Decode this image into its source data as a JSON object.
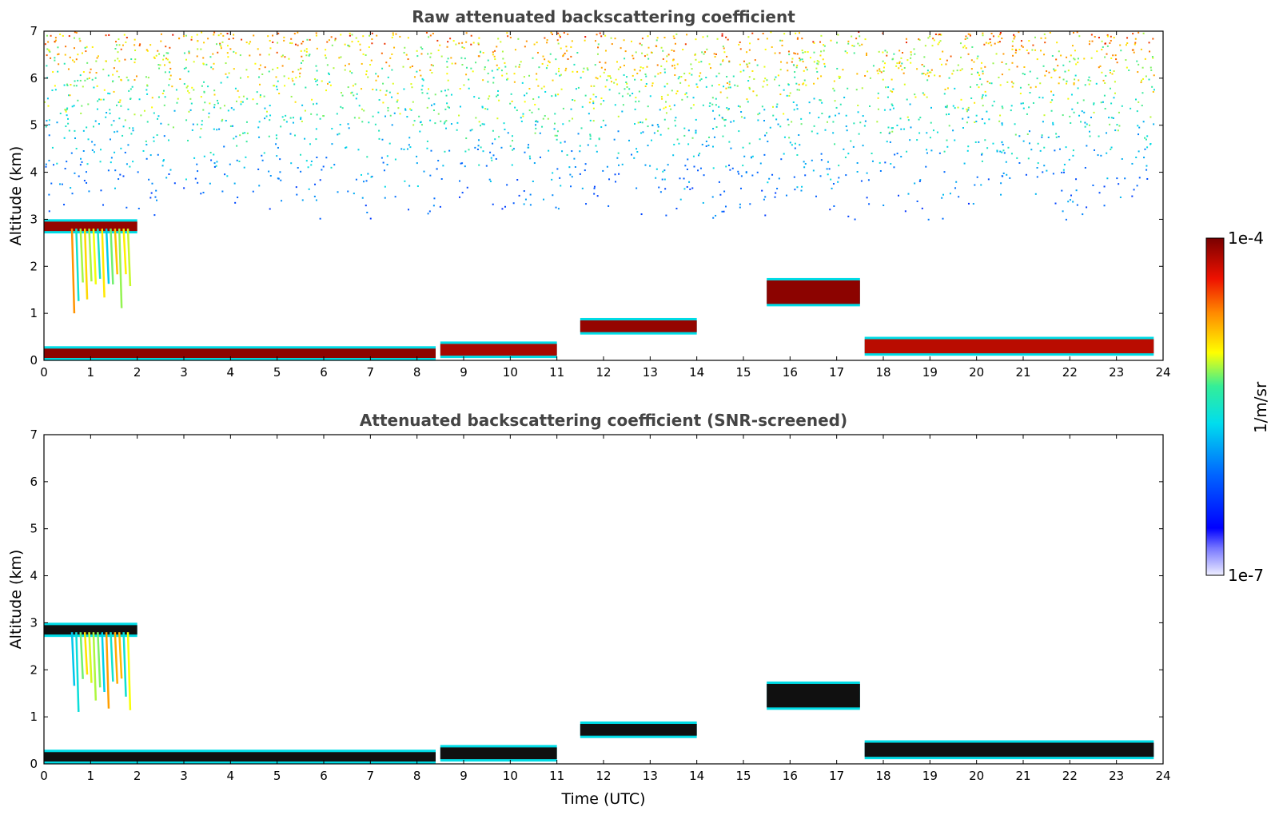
{
  "chart_data": [
    {
      "type": "heatmap",
      "title": "Raw attenuated backscattering coefficient",
      "xlabel": "",
      "ylabel": "Altitude (km)",
      "xlim": [
        0,
        24
      ],
      "ylim": [
        0,
        7
      ],
      "xticks": [
        "0",
        "1",
        "2",
        "3",
        "4",
        "5",
        "6",
        "7",
        "8",
        "9",
        "10",
        "11",
        "12",
        "13",
        "14",
        "15",
        "16",
        "17",
        "18",
        "19",
        "20",
        "21",
        "22",
        "23",
        "24"
      ],
      "yticks": [
        "0",
        "1",
        "2",
        "3",
        "4",
        "5",
        "6",
        "7"
      ],
      "grid": false,
      "layers": [
        {
          "name": "boundary-layer-aerosol",
          "t": [
            0,
            8.4
          ],
          "z": [
            0.05,
            0.25
          ],
          "level": 0.98
        },
        {
          "name": "boundary-layer-aerosol",
          "t": [
            8.5,
            11.0
          ],
          "z": [
            0.1,
            0.35
          ],
          "level": 0.95
        },
        {
          "name": "low-cloud",
          "t": [
            11.5,
            14.0
          ],
          "z": [
            0.6,
            0.85
          ],
          "level": 0.97
        },
        {
          "name": "cloud-base-convective",
          "t": [
            15.5,
            17.5
          ],
          "z": [
            1.2,
            1.7
          ],
          "level": 0.98
        },
        {
          "name": "boundary-layer-aerosol",
          "t": [
            17.6,
            23.8
          ],
          "z": [
            0.15,
            0.45
          ],
          "level": 0.93
        },
        {
          "name": "mid-level-cloud",
          "t": [
            0,
            2.0
          ],
          "z": [
            2.75,
            2.95
          ],
          "level": 0.97
        },
        {
          "name": "virga",
          "t": [
            0.6,
            1.8
          ],
          "z": [
            1.0,
            2.8
          ],
          "level": 0.6
        },
        {
          "name": "upper-noise",
          "t": [
            0,
            23.8
          ],
          "z": [
            3.0,
            7.0
          ],
          "level": 0.55
        }
      ]
    },
    {
      "type": "heatmap",
      "title": "Attenuated backscattering coefficient (SNR-screened)",
      "xlabel": "Time (UTC)",
      "ylabel": "Altitude (km)",
      "xlim": [
        0,
        24
      ],
      "ylim": [
        0,
        7
      ],
      "xticks": [
        "0",
        "1",
        "2",
        "3",
        "4",
        "5",
        "6",
        "7",
        "8",
        "9",
        "10",
        "11",
        "12",
        "13",
        "14",
        "15",
        "16",
        "17",
        "18",
        "19",
        "20",
        "21",
        "22",
        "23",
        "24"
      ],
      "yticks": [
        "0",
        "1",
        "2",
        "3",
        "4",
        "5",
        "6",
        "7"
      ],
      "grid": false,
      "layers": [
        {
          "name": "boundary-layer-aerosol",
          "t": [
            0,
            8.4
          ],
          "z": [
            0.05,
            0.25
          ],
          "level": 1.0
        },
        {
          "name": "boundary-layer-aerosol",
          "t": [
            8.5,
            11.0
          ],
          "z": [
            0.1,
            0.35
          ],
          "level": 1.0
        },
        {
          "name": "low-cloud",
          "t": [
            11.5,
            14.0
          ],
          "z": [
            0.6,
            0.85
          ],
          "level": 1.0
        },
        {
          "name": "cloud-base-convective",
          "t": [
            15.5,
            17.5
          ],
          "z": [
            1.2,
            1.7
          ],
          "level": 1.0
        },
        {
          "name": "boundary-layer-aerosol",
          "t": [
            17.6,
            23.8
          ],
          "z": [
            0.15,
            0.45
          ],
          "level": 1.0
        },
        {
          "name": "mid-level-cloud",
          "t": [
            0,
            2.0
          ],
          "z": [
            2.75,
            2.95
          ],
          "level": 1.0
        },
        {
          "name": "virga",
          "t": [
            0.6,
            1.8
          ],
          "z": [
            1.0,
            2.8
          ],
          "level": 0.6
        }
      ]
    }
  ],
  "colorbar": {
    "label": "1/m/sr",
    "max_label": "1e-4",
    "min_label": "1e-7",
    "scale": "log",
    "colormap": [
      "#ffffff",
      "#0000ff",
      "#00ccff",
      "#33ff99",
      "#ffff00",
      "#ff6600",
      "#cc0000",
      "#7a0000"
    ]
  },
  "colors": {
    "dark_red": "#8b0000",
    "saturated": "#000000",
    "noise_blue": "#1a3cff",
    "noise_cyan": "#33ddcc",
    "noise_yellow": "#ddee33",
    "noise_orange": "#ee8833"
  }
}
